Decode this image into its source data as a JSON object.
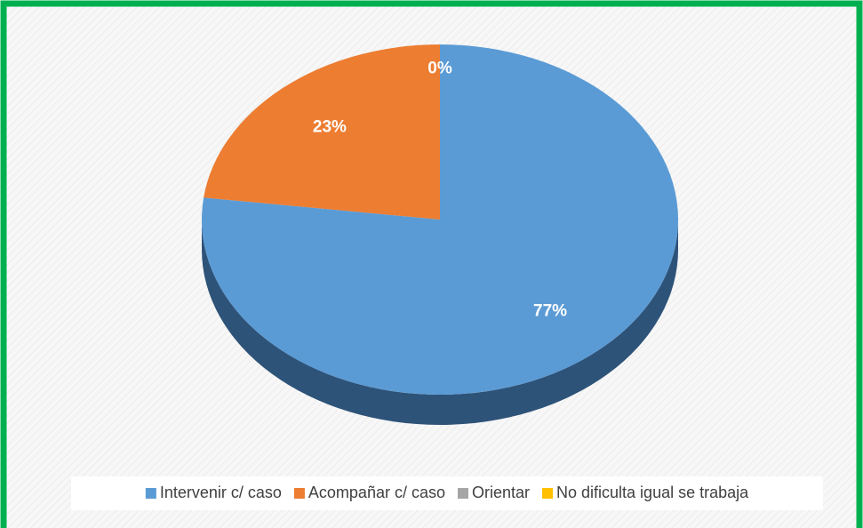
{
  "chart_data": {
    "type": "pie",
    "categories": [
      "Intervenir c/ caso",
      "Acompañar c/ caso",
      "Orientar",
      "No dificulta igual se trabaja"
    ],
    "values": [
      77,
      23,
      0,
      0
    ],
    "value_labels": [
      "77%",
      "23%",
      "0%",
      null
    ],
    "colors": [
      "#5b9bd5",
      "#ed7d31",
      "#a5a5a5",
      "#ffc000"
    ],
    "side_colors": [
      "#2e5379",
      "#9a4f1d",
      "#6b6b6b",
      "#a67c00"
    ],
    "legend": "bottom"
  }
}
